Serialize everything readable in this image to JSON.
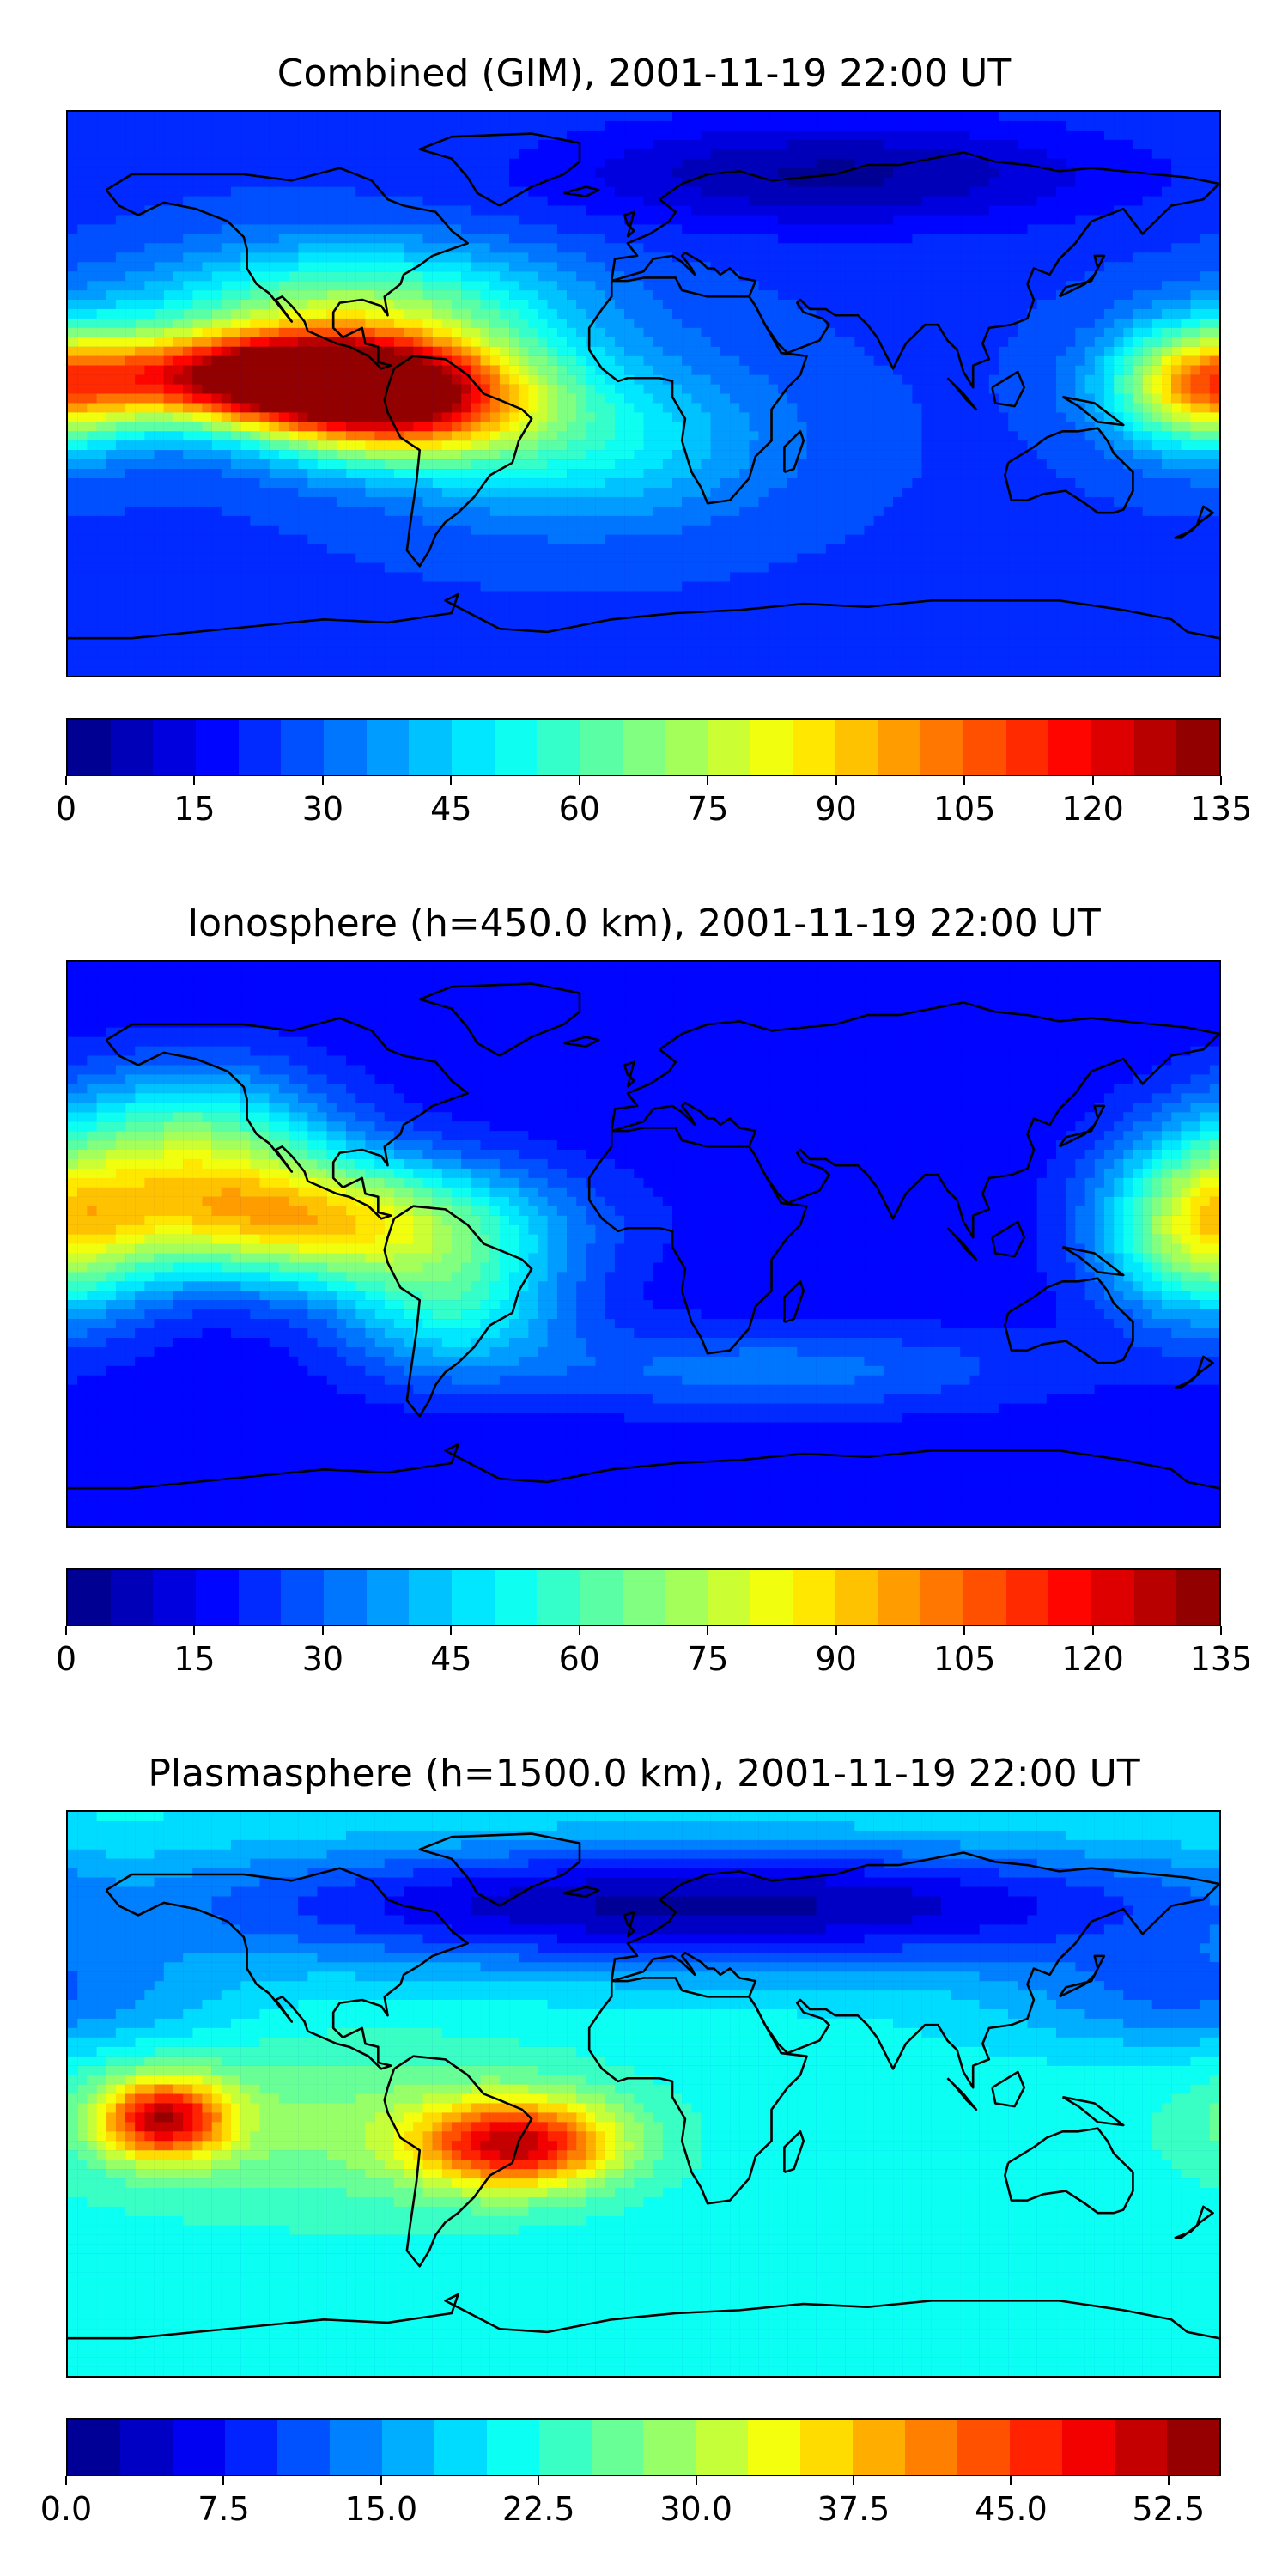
{
  "figure": {
    "panels": [
      {
        "title": "Combined (GIM), 2001-11-19 22:00 UT",
        "colorbar": {
          "min": 0,
          "max": 135,
          "levels": 27,
          "ticks": [
            "0",
            "15",
            "30",
            "45",
            "60",
            "75",
            "90",
            "105",
            "120",
            "135"
          ]
        },
        "field": {
          "background_level": 0.18,
          "blobs": [
            {
              "lon": -115,
              "lat": 5,
              "slon": 40,
              "slat": 10,
              "amp": 0.78
            },
            {
              "lon": -80,
              "lat": -5,
              "slon": 30,
              "slat": 12,
              "amp": 0.55
            },
            {
              "lon": -90,
              "lat": 25,
              "slon": 45,
              "slat": 15,
              "amp": 0.35
            },
            {
              "lon": 175,
              "lat": 2,
              "slon": 20,
              "slat": 14,
              "amp": 0.45
            },
            {
              "lon": -20,
              "lat": -15,
              "slon": 40,
              "slat": 18,
              "amp": 0.2
            },
            {
              "lon": 60,
              "lat": 70,
              "slon": 60,
              "slat": 12,
              "amp": -0.15
            }
          ]
        }
      },
      {
        "title": "Ionosphere  (h=450.0 km), 2001-11-19 22:00 UT",
        "colorbar": {
          "min": 0,
          "max": 135,
          "levels": 27,
          "ticks": [
            "0",
            "15",
            "30",
            "45",
            "60",
            "75",
            "90",
            "105",
            "120",
            "135"
          ]
        },
        "field": {
          "background_level": 0.12,
          "blobs": [
            {
              "lon": -100,
              "lat": 7,
              "slon": 45,
              "slat": 14,
              "amp": 0.5
            },
            {
              "lon": -140,
              "lat": 30,
              "slon": 30,
              "slat": 18,
              "amp": 0.35
            },
            {
              "lon": 175,
              "lat": 5,
              "slon": 22,
              "slat": 20,
              "amp": 0.42
            },
            {
              "lon": -60,
              "lat": -20,
              "slon": 25,
              "slat": 15,
              "amp": 0.25
            },
            {
              "lon": 40,
              "lat": -40,
              "slon": 60,
              "slat": 10,
              "amp": 0.12
            }
          ]
        }
      },
      {
        "title": "Plasmasphere (h=1500.0 km), 2001-11-19 22:00 UT",
        "colorbar": {
          "min": 0.0,
          "max": 55.0,
          "levels": 22,
          "ticks": [
            "0.0",
            "7.5",
            "15.0",
            "22.5",
            "30.0",
            "37.5",
            "45.0",
            "52.5"
          ]
        },
        "field": {
          "background_level": 0.38,
          "blobs": [
            {
              "lon": -150,
              "lat": -8,
              "slon": 14,
              "slat": 9,
              "amp": 0.5
            },
            {
              "lon": -40,
              "lat": -16,
              "slon": 22,
              "slat": 10,
              "amp": 0.5
            },
            {
              "lon": -100,
              "lat": -10,
              "slon": 60,
              "slat": 20,
              "amp": 0.12
            },
            {
              "lon": 20,
              "lat": 60,
              "slon": 120,
              "slat": 14,
              "amp": -0.35
            },
            {
              "lon": 170,
              "lat": 30,
              "slon": 40,
              "slat": 12,
              "amp": -0.15
            }
          ]
        }
      }
    ]
  }
}
